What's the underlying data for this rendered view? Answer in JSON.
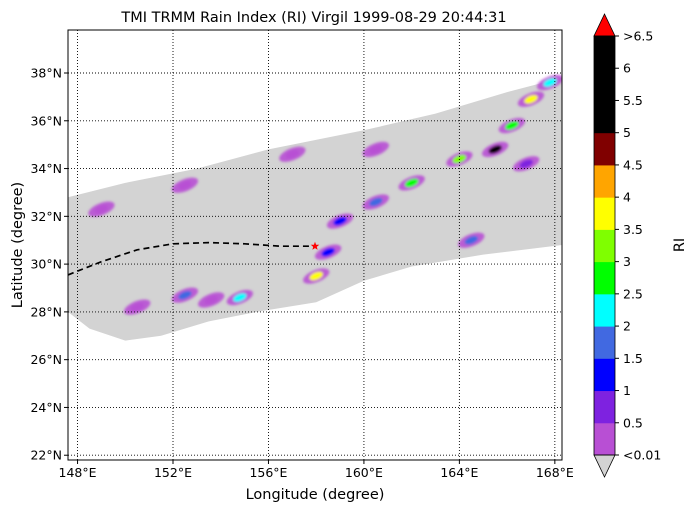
{
  "chart_data": {
    "type": "heatmap",
    "title": "TMI TRMM Rain Index (RI) Virgil 1999-08-29 20:44:31",
    "xlabel": "Longitude (degree)",
    "ylabel": "Latitude (degree)",
    "xlim": [
      147.6,
      168.3
    ],
    "ylim": [
      21.8,
      39.8
    ],
    "x_ticks": [
      148,
      152,
      156,
      160,
      164,
      168
    ],
    "x_tick_labels": [
      "148°E",
      "152°E",
      "156°E",
      "160°E",
      "164°E",
      "168°E"
    ],
    "y_ticks": [
      22,
      24,
      26,
      28,
      30,
      32,
      34,
      36,
      38
    ],
    "y_tick_labels": [
      "22°N",
      "24°N",
      "26°N",
      "28°N",
      "30°N",
      "32°N",
      "34°N",
      "36°N",
      "38°N"
    ],
    "grid": "dotted",
    "colorbar": {
      "label": "RI",
      "tick_labels": [
        ">6.5",
        "6",
        "5.5",
        "5",
        "4.5",
        "4",
        "3.5",
        "3",
        "2.5",
        "2",
        "1.5",
        "1",
        "0.5",
        "<0.01"
      ],
      "levels": [
        0.01,
        0.5,
        1,
        1.5,
        2,
        2.5,
        3,
        3.5,
        4,
        4.5,
        5,
        5.5,
        6,
        6.5
      ],
      "colors": [
        "#b84fd4",
        "#7e22e0",
        "#0000ff",
        "#4169e1",
        "#00ffff",
        "#00ff00",
        "#7fff00",
        "#ffff00",
        "#ffa500",
        "#800000",
        "#000000",
        "#000000",
        "#000000"
      ],
      "over_color": "#ff0000",
      "under_color": "#d3d3d3"
    },
    "swath_color": "#d3d3d3",
    "swath_polygon": [
      [
        147.6,
        32.8
      ],
      [
        150,
        33.4
      ],
      [
        153,
        34.0
      ],
      [
        156,
        34.8
      ],
      [
        160,
        35.6
      ],
      [
        163,
        36.3
      ],
      [
        166,
        37.2
      ],
      [
        168.3,
        37.8
      ],
      [
        168.3,
        30.8
      ],
      [
        165,
        30.4
      ],
      [
        162,
        29.9
      ],
      [
        160,
        29.3
      ],
      [
        158,
        28.4
      ],
      [
        155.5,
        28.0
      ],
      [
        153.5,
        27.6
      ],
      [
        151.5,
        27.0
      ],
      [
        150,
        26.8
      ],
      [
        148.5,
        27.3
      ],
      [
        147.6,
        28.0
      ]
    ],
    "track": {
      "style": "dashed",
      "color": "#000000",
      "points": [
        [
          147.6,
          29.55
        ],
        [
          149,
          30.1
        ],
        [
          150.5,
          30.6
        ],
        [
          152,
          30.85
        ],
        [
          153.5,
          30.9
        ],
        [
          155,
          30.85
        ],
        [
          156.5,
          30.75
        ],
        [
          157.9,
          30.75
        ]
      ]
    },
    "storm_position": {
      "lon": 157.95,
      "lat": 30.75,
      "marker": "star",
      "color": "#ff0000"
    },
    "rain_cells": [
      {
        "lon": 153.6,
        "lat": 28.5,
        "ri": 0.3
      },
      {
        "lon": 152.5,
        "lat": 28.7,
        "ri": 1.8
      },
      {
        "lon": 154.8,
        "lat": 28.6,
        "ri": 2.2
      },
      {
        "lon": 150.5,
        "lat": 28.2,
        "ri": 0.3
      },
      {
        "lon": 158.0,
        "lat": 29.5,
        "ri": 3.5
      },
      {
        "lon": 158.5,
        "lat": 30.5,
        "ri": 1.2
      },
      {
        "lon": 159.0,
        "lat": 31.8,
        "ri": 1.0
      },
      {
        "lon": 160.5,
        "lat": 32.6,
        "ri": 1.5
      },
      {
        "lon": 162.0,
        "lat": 33.4,
        "ri": 2.5
      },
      {
        "lon": 164.0,
        "lat": 34.4,
        "ri": 3.2
      },
      {
        "lon": 165.5,
        "lat": 34.8,
        "ri": 5.5
      },
      {
        "lon": 166.2,
        "lat": 35.8,
        "ri": 2.8
      },
      {
        "lon": 167.0,
        "lat": 36.9,
        "ri": 3.8
      },
      {
        "lon": 167.8,
        "lat": 37.6,
        "ri": 2.0
      },
      {
        "lon": 164.5,
        "lat": 31.0,
        "ri": 1.5
      },
      {
        "lon": 166.8,
        "lat": 34.2,
        "ri": 0.8
      },
      {
        "lon": 149.0,
        "lat": 32.3,
        "ri": 0.4
      },
      {
        "lon": 152.5,
        "lat": 33.3,
        "ri": 0.3
      },
      {
        "lon": 157.0,
        "lat": 34.6,
        "ri": 0.3
      },
      {
        "lon": 160.5,
        "lat": 34.8,
        "ri": 0.3
      }
    ]
  }
}
